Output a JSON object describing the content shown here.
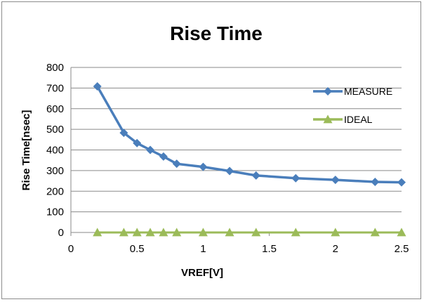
{
  "chart_data": {
    "type": "line",
    "title": "Rise Time",
    "xlabel": "VREF[V]",
    "ylabel": "Rise Time[nsec]",
    "xlim": [
      0,
      2.5
    ],
    "ylim": [
      0,
      800
    ],
    "xticks": [
      "0",
      "0.5",
      "1",
      "1.5",
      "2",
      "2.5"
    ],
    "yticks": [
      "0",
      "100",
      "200",
      "300",
      "400",
      "500",
      "600",
      "700",
      "800"
    ],
    "grid": "horizontal",
    "legend_position": "right",
    "x": [
      0.2,
      0.4,
      0.5,
      0.6,
      0.7,
      0.8,
      1.0,
      1.2,
      1.4,
      1.7,
      2.0,
      2.3,
      2.5
    ],
    "series": [
      {
        "name": "MEASURE",
        "color": "#4a7ebb",
        "marker": "diamond",
        "values": [
          708,
          483,
          433,
          400,
          368,
          333,
          318,
          298,
          276,
          263,
          255,
          245,
          243
        ]
      },
      {
        "name": "IDEAL",
        "color": "#9bbb59",
        "marker": "triangle",
        "values": [
          0,
          0,
          0,
          0,
          0,
          0,
          0,
          0,
          0,
          0,
          0,
          0,
          0
        ]
      }
    ]
  }
}
